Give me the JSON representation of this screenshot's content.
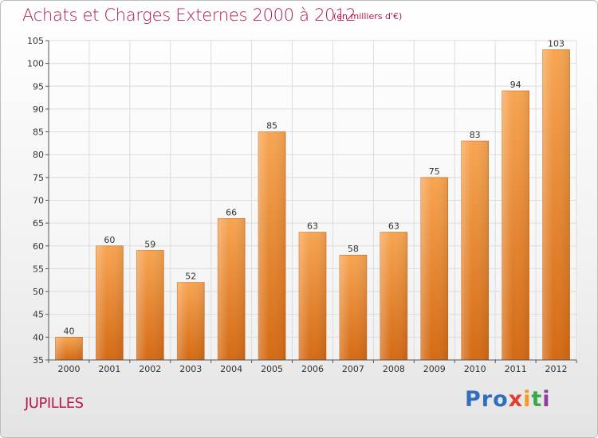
{
  "chart_data": {
    "type": "bar",
    "title": "Achats et Charges Externes 2000 à 2012",
    "subtitle": "(en milliers d'€)",
    "categories": [
      "2000",
      "2001",
      "2002",
      "2003",
      "2004",
      "2005",
      "2006",
      "2007",
      "2008",
      "2009",
      "2010",
      "2011",
      "2012"
    ],
    "values": [
      40,
      60,
      59,
      52,
      66,
      85,
      63,
      58,
      63,
      75,
      83,
      94,
      103
    ],
    "ylim": [
      35,
      105
    ],
    "yticks": [
      35,
      40,
      45,
      50,
      55,
      60,
      65,
      70,
      75,
      80,
      85,
      90,
      95,
      100,
      105
    ],
    "xlabel": "",
    "ylabel": "",
    "grid": true,
    "bar_color": "#f0932e"
  },
  "footer": {
    "commune": "JUPILLES",
    "brand": {
      "p1": "Pro",
      "p2": "x",
      "p3": "i",
      "p4": "t",
      "p5": "i"
    }
  },
  "colors": {
    "title": "#b3194a",
    "grid": "#dcdcdc",
    "axis": "#555555"
  }
}
